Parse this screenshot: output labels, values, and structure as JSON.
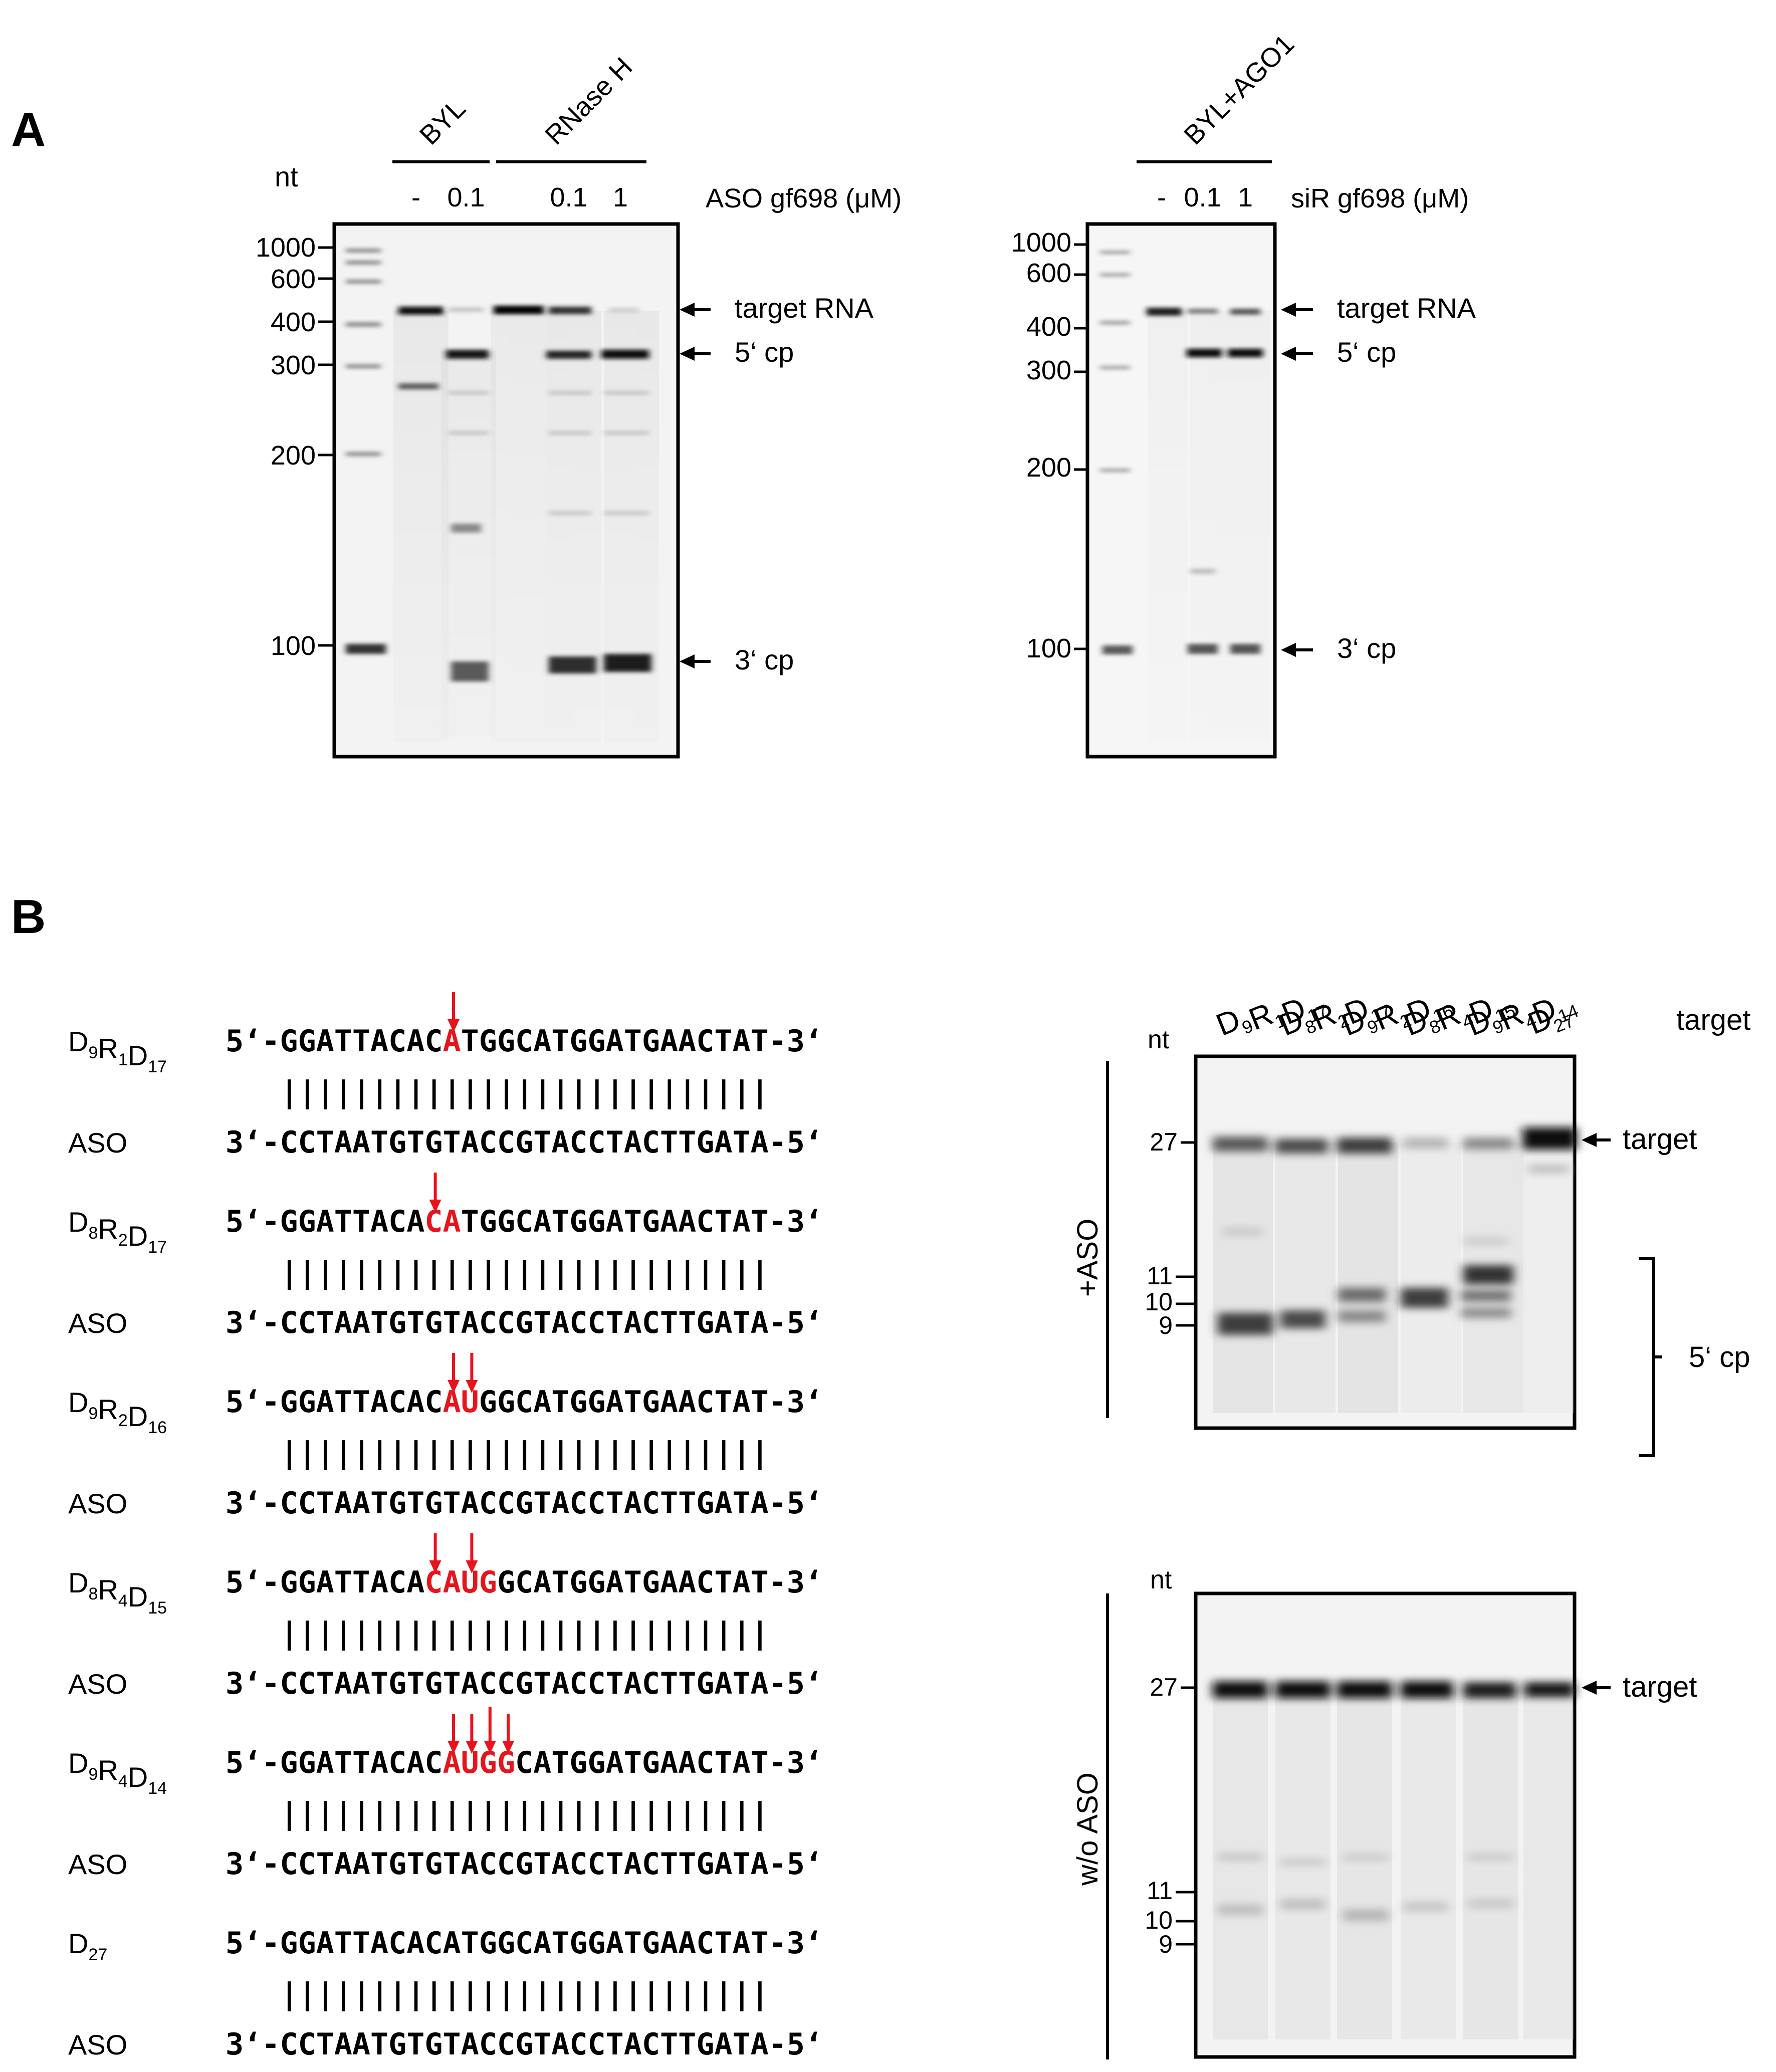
{
  "panelA": {
    "letter": "A",
    "nt_label": "nt",
    "gel1": {
      "markers": [
        "1000",
        "600",
        "400",
        "300",
        "200",
        "100"
      ],
      "group_labels": [
        "BYL",
        "RNase H"
      ],
      "lane_labels": [
        "-",
        "0.1",
        "0.1",
        "1"
      ],
      "condition": "ASO gf698 (μM)",
      "band_labels": [
        "target RNA",
        "5‘ cp",
        "3‘ cp"
      ]
    },
    "gel2": {
      "markers": [
        "1000",
        "600",
        "400",
        "300",
        "200",
        "100"
      ],
      "group_labels": [
        "BYL+AGO1"
      ],
      "lane_labels": [
        "-",
        "0.1",
        "1"
      ],
      "condition": "siR gf698 (μM)",
      "band_labels": [
        "target RNA",
        "5‘ cp",
        "3‘ cp"
      ]
    }
  },
  "panelB": {
    "letter": "B",
    "pairs": [
      {
        "sub": {
          "main": "D",
          "parts": [
            [
              "D",
              "9"
            ],
            [
              "R",
              "1"
            ],
            [
              "D",
              "17"
            ]
          ]
        },
        "target": {
          "pre": "5‘-GGATTACAC",
          "red": "A",
          "post": "TGGCATGGATGAACTAT-3‘"
        },
        "ticks": "|||||||||||||||||||||||||||",
        "aso_label": "ASO",
        "aso": "3‘-CCTAATGTGTACCGTACCTACTTGATA-5‘",
        "arrows": 1
      },
      {
        "sub": {
          "parts": [
            [
              "D",
              "8"
            ],
            [
              "R",
              "2"
            ],
            [
              "D",
              "17"
            ]
          ]
        },
        "target": {
          "pre": "5‘-GGATTACA",
          "red": "CA",
          "post": "TGGCATGGATGAACTAT-3‘"
        },
        "ticks": "|||||||||||||||||||||||||||",
        "aso_label": "ASO",
        "aso": "3‘-CCTAATGTGTACCGTACCTACTTGATA-5‘",
        "arrows": 1
      },
      {
        "sub": {
          "parts": [
            [
              "D",
              "9"
            ],
            [
              "R",
              "2"
            ],
            [
              "D",
              "16"
            ]
          ]
        },
        "target": {
          "pre": "5‘-GGATTACAC",
          "red": "AU",
          "post": "GGCATGGATGAACTAT-3‘"
        },
        "ticks": "|||||||||||||||||||||||||||",
        "aso_label": "ASO",
        "aso": "3‘-CCTAATGTGTACCGTACCTACTTGATA-5‘",
        "arrows": 2
      },
      {
        "sub": {
          "parts": [
            [
              "D",
              "8"
            ],
            [
              "R",
              "4"
            ],
            [
              "D",
              "15"
            ]
          ]
        },
        "target": {
          "pre": "5‘-GGATTACA",
          "red": "CAUG",
          "post": "GCATGGATGAACTAT-3‘"
        },
        "ticks": "|||||||||||||||||||||||||||",
        "aso_label": "ASO",
        "aso": "3‘-CCTAATGTGTACCGTACCTACTTGATA-5‘",
        "arrows": 2
      },
      {
        "sub": {
          "parts": [
            [
              "D",
              "9"
            ],
            [
              "R",
              "4"
            ],
            [
              "D",
              "14"
            ]
          ]
        },
        "target": {
          "pre": "5‘-GGATTACAC",
          "red": "AUGG",
          "post": "CATGGATGAACTAT-3‘"
        },
        "ticks": "|||||||||||||||||||||||||||",
        "aso_label": "ASO",
        "aso": "3‘-CCTAATGTGTACCGTACCTACTTGATA-5‘",
        "arrows": 4
      },
      {
        "sub": {
          "parts": [
            [
              "D",
              "27"
            ]
          ]
        },
        "target": {
          "pre": "5‘-GGATTACACATGGCATGGATGAACTAT-3‘",
          "red": "",
          "post": ""
        },
        "ticks": "|||||||||||||||||||||||||||",
        "aso_label": "ASO",
        "aso": "3‘-CCTAATGTGTACCGTACCTACTTGATA-5‘",
        "arrows": 0
      }
    ],
    "gel_columns": [
      [
        [
          "D",
          "9"
        ],
        [
          "R",
          "1"
        ],
        [
          "D",
          "17"
        ]
      ],
      [
        [
          "D",
          "8"
        ],
        [
          "R",
          "2"
        ],
        [
          "D",
          "17"
        ]
      ],
      [
        [
          "D",
          "9"
        ],
        [
          "R",
          "2"
        ],
        [
          "D",
          "16"
        ]
      ],
      [
        [
          "D",
          "8"
        ],
        [
          "R",
          "4"
        ],
        [
          "D",
          "15"
        ]
      ],
      [
        [
          "D",
          "9"
        ],
        [
          "R",
          "4"
        ],
        [
          "D",
          "14"
        ]
      ],
      [
        [
          "D",
          "27"
        ]
      ]
    ],
    "column_header": "target",
    "gel_top": {
      "side_label": "+ASO",
      "nt_label": "nt",
      "markers": [
        "27",
        "11",
        "10",
        "9"
      ],
      "band_labels": [
        "target",
        "5‘ cp"
      ]
    },
    "gel_bottom": {
      "side_label": "w/o ASO",
      "nt_label": "nt",
      "markers": [
        "27",
        "11",
        "10",
        "9"
      ],
      "band_labels": [
        "target"
      ]
    }
  },
  "colors": {
    "text": "#000000",
    "highlight": "#e8141b",
    "gel_bg": "#f4f4f4",
    "band": "#1a1a1a"
  }
}
